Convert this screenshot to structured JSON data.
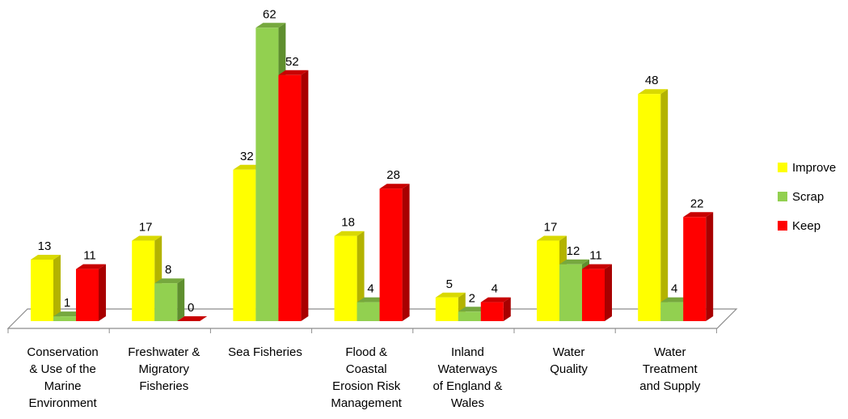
{
  "chart_data": {
    "type": "bar",
    "categories": [
      [
        "Conservation",
        "& Use of the",
        "Marine",
        "Environment"
      ],
      [
        "Freshwater &",
        "Migratory",
        "Fisheries"
      ],
      [
        "Sea Fisheries"
      ],
      [
        "Flood &",
        "Coastal",
        "Erosion Risk",
        "Management"
      ],
      [
        "Inland",
        "Waterways",
        "of England &",
        "Wales"
      ],
      [
        "Water",
        "Quality"
      ],
      [
        "Water",
        "Treatment",
        "and Supply"
      ]
    ],
    "series": [
      {
        "name": "Improve",
        "values": [
          13,
          17,
          32,
          18,
          5,
          17,
          48
        ],
        "color": "#ffff00",
        "side": "#b3b300",
        "top": "#d9d900"
      },
      {
        "name": "Scrap",
        "values": [
          1,
          8,
          62,
          4,
          2,
          12,
          4
        ],
        "color": "#92d050",
        "side": "#5f8f2f",
        "top": "#76a83e"
      },
      {
        "name": "Keep",
        "values": [
          11,
          0,
          52,
          28,
          4,
          11,
          22
        ],
        "color": "#ff0000",
        "side": "#a80000",
        "top": "#c80000"
      }
    ],
    "ylim": [
      0,
      62
    ],
    "grid": false,
    "legend": "right",
    "style": "3d-clustered-column"
  }
}
